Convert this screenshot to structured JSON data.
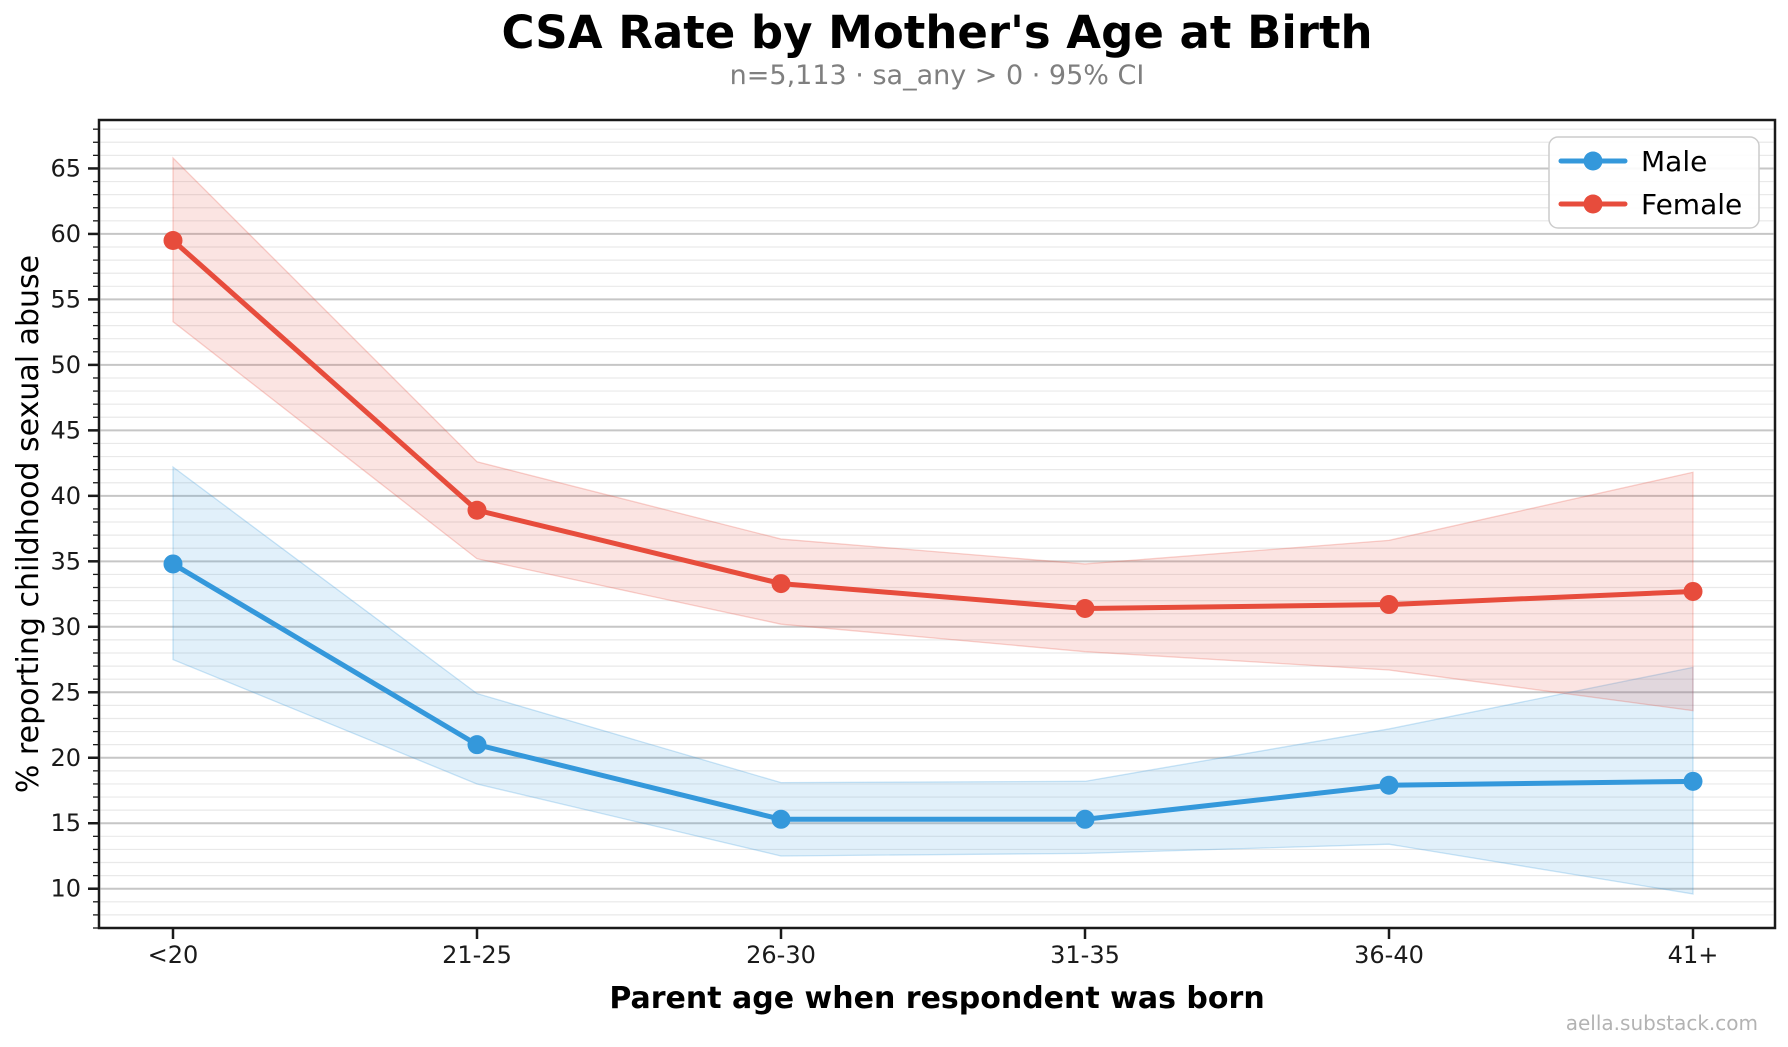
{
  "title": "CSA Rate by Mother's Age at Birth",
  "subtitle": "n=5,113 · sa_any > 0 · 95% CI",
  "watermark": "aella.substack.com",
  "chart_data": {
    "type": "line",
    "title": "CSA Rate by Mother's Age at Birth",
    "subtitle": "n=5,113 · sa_any > 0 · 95% CI",
    "xlabel": "Parent age when respondent was born",
    "ylabel": "% reporting childhood sexual abuse",
    "categories": [
      "<20",
      "21-25",
      "26-30",
      "31-35",
      "36-40",
      "41+"
    ],
    "series": [
      {
        "name": "Male",
        "color": "#3498db",
        "values": [
          34.8,
          21.0,
          15.3,
          15.3,
          17.9,
          18.2
        ],
        "ci_lower": [
          27.5,
          18.0,
          12.5,
          12.7,
          13.4,
          9.6
        ],
        "ci_upper": [
          42.2,
          24.9,
          18.1,
          18.2,
          22.2,
          26.9
        ]
      },
      {
        "name": "Female",
        "color": "#e74c3c",
        "values": [
          59.5,
          38.9,
          33.3,
          31.4,
          31.7,
          32.7
        ],
        "ci_lower": [
          53.3,
          35.2,
          30.2,
          28.1,
          26.7,
          23.6
        ],
        "ci_upper": [
          65.8,
          42.6,
          36.7,
          34.8,
          36.6,
          41.8
        ]
      }
    ],
    "ci_level": "95% CI",
    "band_alpha": 0.15,
    "ylim": [
      7,
      68.7
    ],
    "yticks": [
      10,
      15,
      20,
      25,
      30,
      35,
      40,
      45,
      50,
      55,
      60,
      65
    ],
    "minor_grid_step": 1,
    "grid": "horizontal",
    "legend_position": "top-right",
    "colors": {
      "major_grid": "#c6c6c6",
      "minor_grid": "#e9e9e9",
      "spine": "#1a1a1a",
      "legend_border": "#cccccc"
    }
  }
}
